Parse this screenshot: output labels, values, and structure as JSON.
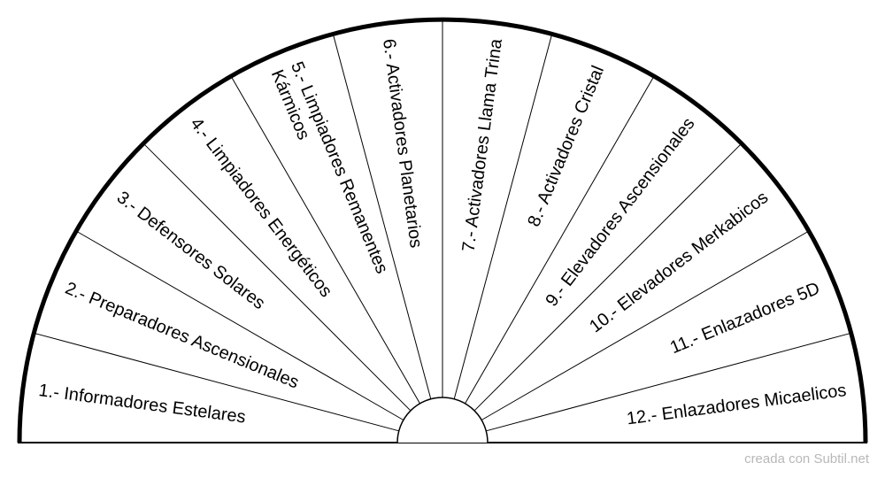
{
  "chart": {
    "segments": [
      {
        "lines": [
          "1.- Informadores Estelares"
        ]
      },
      {
        "lines": [
          "2.- Preparadores Ascensionales"
        ]
      },
      {
        "lines": [
          "3.- Defensores Solares"
        ]
      },
      {
        "lines": [
          "4.- Limpiadores Energéticos"
        ]
      },
      {
        "lines": [
          "5.- Limpiadores Remanentes",
          "Kármicos"
        ]
      },
      {
        "lines": [
          "6.- Activadores Planetarios"
        ]
      },
      {
        "lines": [
          "7.- Activadores Llama Trina"
        ]
      },
      {
        "lines": [
          "8.- Activadores Cristal"
        ]
      },
      {
        "lines": [
          "9.- Elevadores Ascensionales"
        ]
      },
      {
        "lines": [
          "10.- Elevadores Merkabicos"
        ]
      },
      {
        "lines": [
          "11.- Enlazadores 5D"
        ]
      },
      {
        "lines": [
          "12.- Enlazadores Micaelicos"
        ]
      }
    ]
  },
  "footer": {
    "credit": "creada con Subtil.net"
  }
}
